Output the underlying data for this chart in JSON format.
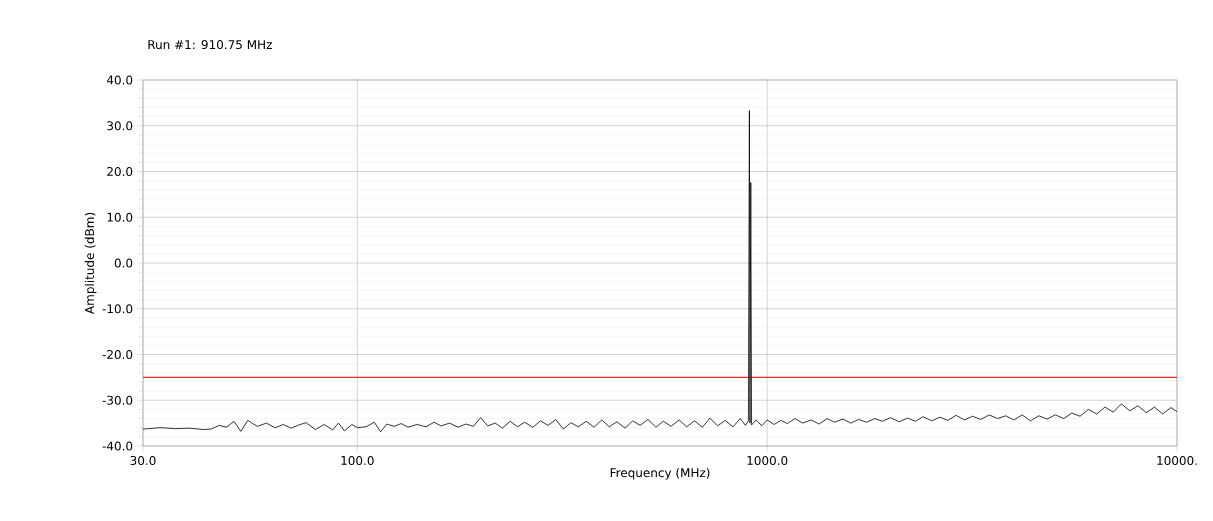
{
  "chart_data": {
    "type": "line",
    "title": "Run #1: 910.75 MHz",
    "xlabel": "Frequency (MHz)",
    "ylabel": "Amplitude (dBm)",
    "log": "x",
    "grid": true,
    "marker": "none",
    "line_style": "solid",
    "xlim": [
      30,
      10000
    ],
    "ylim": [
      -40,
      40
    ],
    "xticks": [
      {
        "value": 30,
        "label": "30.0"
      },
      {
        "value": 100,
        "label": "100.0"
      },
      {
        "value": 1000,
        "label": "1000.0"
      },
      {
        "value": 10000,
        "label": "10000."
      }
    ],
    "yticks": [
      {
        "value": -40,
        "label": "-40.0"
      },
      {
        "value": -30,
        "label": "-30.0"
      },
      {
        "value": -20,
        "label": "-20.0"
      },
      {
        "value": -10,
        "label": "-10.0"
      },
      {
        "value": 0,
        "label": "0.0"
      },
      {
        "value": 10,
        "label": "10.0"
      },
      {
        "value": 20,
        "label": "20.0"
      },
      {
        "value": 30,
        "label": "30.0"
      },
      {
        "value": 40,
        "label": "40.0"
      }
    ],
    "ref_lines": [
      {
        "axis": "y",
        "value": -25,
        "color": "#e8281e"
      }
    ],
    "x": [
      30,
      33,
      36,
      39,
      42,
      44,
      46,
      48,
      50,
      52,
      54,
      57,
      60,
      63,
      66,
      69,
      72,
      75,
      79,
      83,
      87,
      90,
      93,
      97,
      100,
      105,
      110,
      114,
      118,
      123,
      128,
      133,
      140,
      147,
      154,
      160,
      168,
      176,
      184,
      192,
      200,
      208,
      217,
      226,
      236,
      246,
      256,
      268,
      280,
      292,
      305,
      318,
      332,
      346,
      362,
      378,
      395,
      412,
      430,
      450,
      470,
      490,
      512,
      535,
      558,
      583,
      610,
      636,
      665,
      695,
      725,
      757,
      790,
      825,
      860,
      885,
      900,
      905,
      908,
      912,
      916,
      940,
      970,
      1000,
      1040,
      1080,
      1120,
      1170,
      1220,
      1280,
      1340,
      1400,
      1460,
      1530,
      1600,
      1670,
      1750,
      1830,
      1910,
      2000,
      2100,
      2200,
      2300,
      2400,
      2520,
      2640,
      2760,
      2890,
      3030,
      3170,
      3320,
      3480,
      3650,
      3820,
      4000,
      4190,
      4390,
      4600,
      4820,
      5050,
      5290,
      5540,
      5800,
      6080,
      6370,
      6670,
      6990,
      7320,
      7670,
      8030,
      8410,
      8810,
      9230,
      9660,
      10000
    ],
    "series": [
      {
        "color": "#000000",
        "values": [
          -36.3,
          -36.0,
          -36.2,
          -36.1,
          -36.4,
          -36.3,
          -35.5,
          -35.9,
          -34.6,
          -36.8,
          -34.4,
          -35.7,
          -35.0,
          -36.0,
          -35.3,
          -36.1,
          -35.4,
          -34.9,
          -36.4,
          -35.3,
          -36.5,
          -35.0,
          -36.7,
          -35.3,
          -36.0,
          -35.8,
          -34.8,
          -36.9,
          -35.2,
          -35.7,
          -35.1,
          -35.9,
          -35.3,
          -35.8,
          -34.8,
          -35.6,
          -35.0,
          -35.9,
          -35.2,
          -35.7,
          -33.8,
          -35.6,
          -35.0,
          -36.1,
          -34.6,
          -35.8,
          -34.8,
          -35.9,
          -34.5,
          -35.5,
          -34.2,
          -36.3,
          -34.9,
          -35.8,
          -34.6,
          -35.9,
          -34.3,
          -35.8,
          -34.7,
          -36.1,
          -34.5,
          -35.5,
          -34.2,
          -35.9,
          -34.6,
          -35.7,
          -34.3,
          -35.8,
          -34.5,
          -35.9,
          -33.9,
          -35.6,
          -34.4,
          -35.8,
          -34.0,
          -35.5,
          -34.5,
          33.3,
          -35.0,
          17.6,
          -35.4,
          -34.3,
          -35.6,
          -34.3,
          -35.3,
          -34.4,
          -35.1,
          -34.0,
          -35.0,
          -34.3,
          -35.2,
          -34.0,
          -34.8,
          -34.1,
          -35.0,
          -34.2,
          -34.8,
          -34.0,
          -34.6,
          -33.8,
          -34.7,
          -33.9,
          -34.6,
          -33.6,
          -34.5,
          -33.7,
          -34.4,
          -33.3,
          -34.3,
          -33.5,
          -34.2,
          -33.2,
          -34.0,
          -33.4,
          -34.3,
          -33.2,
          -34.5,
          -33.4,
          -34.1,
          -33.2,
          -34.0,
          -32.8,
          -33.5,
          -32.0,
          -33.0,
          -31.5,
          -32.6,
          -30.8,
          -32.3,
          -31.2,
          -32.7,
          -31.5,
          -33.0,
          -31.6,
          -32.5
        ]
      }
    ]
  }
}
